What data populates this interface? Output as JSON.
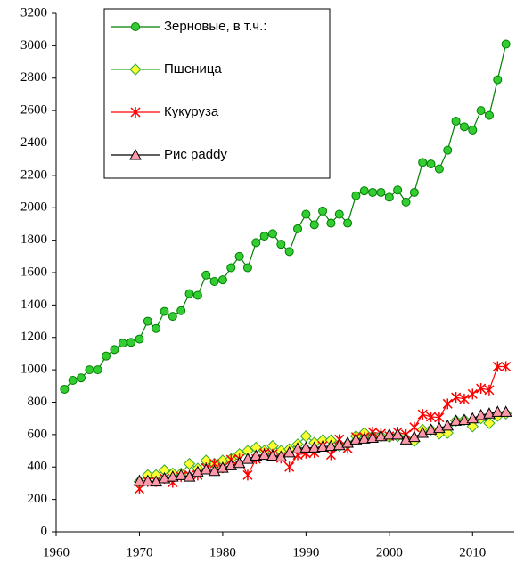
{
  "chart_data": {
    "type": "line",
    "xlim": [
      1960,
      2015
    ],
    "xticks": [
      1960,
      1970,
      1980,
      1990,
      2000,
      2010
    ],
    "ylim": [
      0,
      3200
    ],
    "yticks": [
      0,
      200,
      400,
      600,
      800,
      1000,
      1200,
      1400,
      1600,
      1800,
      2000,
      2200,
      2400,
      2600,
      2800,
      3000,
      3200
    ],
    "legend": "top-left",
    "series": [
      {
        "name": "Зерновые, в т.ч.:",
        "color": "#008000",
        "marker": "circle",
        "marker_fill": "#33cc33",
        "x": [
          1961,
          1962,
          1963,
          1964,
          1965,
          1966,
          1967,
          1968,
          1969,
          1970,
          1971,
          1972,
          1973,
          1974,
          1975,
          1976,
          1977,
          1978,
          1979,
          1980,
          1981,
          1982,
          1983,
          1984,
          1985,
          1986,
          1987,
          1988,
          1989,
          1990,
          1991,
          1992,
          1993,
          1994,
          1995,
          1996,
          1997,
          1998,
          1999,
          2000,
          2001,
          2002,
          2003,
          2004,
          2005,
          2006,
          2007,
          2008,
          2009,
          2010,
          2011,
          2012,
          2013,
          2014
        ],
        "values": [
          880,
          935,
          950,
          1000,
          1000,
          1085,
          1125,
          1165,
          1170,
          1190,
          1300,
          1255,
          1360,
          1330,
          1365,
          1470,
          1460,
          1585,
          1545,
          1555,
          1630,
          1700,
          1630,
          1785,
          1825,
          1840,
          1775,
          1730,
          1870,
          1960,
          1895,
          1980,
          1905,
          1960,
          1905,
          2075,
          2105,
          2095,
          2095,
          2065,
          2110,
          2035,
          2095,
          2280,
          2270,
          2240,
          2355,
          2535,
          2500,
          2480,
          2600,
          2570,
          2790,
          3010
        ]
      },
      {
        "name": "Пшеница",
        "color": "#33aa33",
        "marker": "diamond",
        "marker_fill": "#ffff33",
        "x": [
          1970,
          1971,
          1972,
          1973,
          1974,
          1975,
          1976,
          1977,
          1978,
          1979,
          1980,
          1981,
          1982,
          1983,
          1984,
          1985,
          1986,
          1987,
          1988,
          1989,
          1990,
          1991,
          1992,
          1993,
          1994,
          1995,
          1996,
          1997,
          1998,
          1999,
          2000,
          2001,
          2002,
          2003,
          2004,
          2005,
          2006,
          2007,
          2008,
          2009,
          2010,
          2011,
          2012,
          2013,
          2014
        ],
        "values": [
          310,
          350,
          350,
          380,
          360,
          360,
          420,
          390,
          440,
          420,
          440,
          450,
          480,
          500,
          520,
          500,
          530,
          500,
          510,
          540,
          590,
          550,
          565,
          565,
          530,
          540,
          590,
          610,
          590,
          590,
          585,
          590,
          575,
          560,
          630,
          630,
          605,
          610,
          685,
          690,
          650,
          700,
          670,
          715,
          730
        ]
      },
      {
        "name": "Кукуруза",
        "color": "#ff0000",
        "marker": "asterisk",
        "marker_fill": "#ff0000",
        "x": [
          1970,
          1971,
          1972,
          1973,
          1974,
          1975,
          1976,
          1977,
          1978,
          1979,
          1980,
          1981,
          1982,
          1983,
          1984,
          1985,
          1986,
          1987,
          1988,
          1989,
          1990,
          1991,
          1992,
          1993,
          1994,
          1995,
          1996,
          1997,
          1998,
          1999,
          2000,
          2001,
          2002,
          2003,
          2004,
          2005,
          2006,
          2007,
          2008,
          2009,
          2010,
          2011,
          2012,
          2013,
          2014
        ],
        "values": [
          265,
          310,
          310,
          330,
          305,
          340,
          350,
          350,
          395,
          420,
          395,
          445,
          450,
          350,
          450,
          485,
          480,
          455,
          400,
          475,
          485,
          490,
          530,
          475,
          570,
          515,
          585,
          585,
          615,
          605,
          590,
          615,
          600,
          645,
          725,
          710,
          705,
          790,
          830,
          820,
          850,
          885,
          875,
          1020,
          1020
        ]
      },
      {
        "name": "Рис paddy",
        "color": "#000000",
        "marker": "triangle",
        "marker_fill": "#ff99aa",
        "x": [
          1970,
          1971,
          1972,
          1973,
          1974,
          1975,
          1976,
          1977,
          1978,
          1979,
          1980,
          1981,
          1982,
          1983,
          1984,
          1985,
          1986,
          1987,
          1988,
          1989,
          1990,
          1991,
          1992,
          1993,
          1994,
          1995,
          1996,
          1997,
          1998,
          1999,
          2000,
          2001,
          2002,
          2003,
          2004,
          2005,
          2006,
          2007,
          2008,
          2009,
          2010,
          2011,
          2012,
          2013,
          2014
        ],
        "values": [
          315,
          315,
          310,
          330,
          340,
          350,
          340,
          370,
          385,
          375,
          395,
          410,
          425,
          450,
          470,
          475,
          470,
          465,
          490,
          515,
          520,
          520,
          525,
          530,
          535,
          550,
          570,
          575,
          580,
          590,
          600,
          600,
          570,
          585,
          610,
          630,
          640,
          655,
          685,
          690,
          700,
          720,
          730,
          740,
          740
        ]
      }
    ]
  }
}
